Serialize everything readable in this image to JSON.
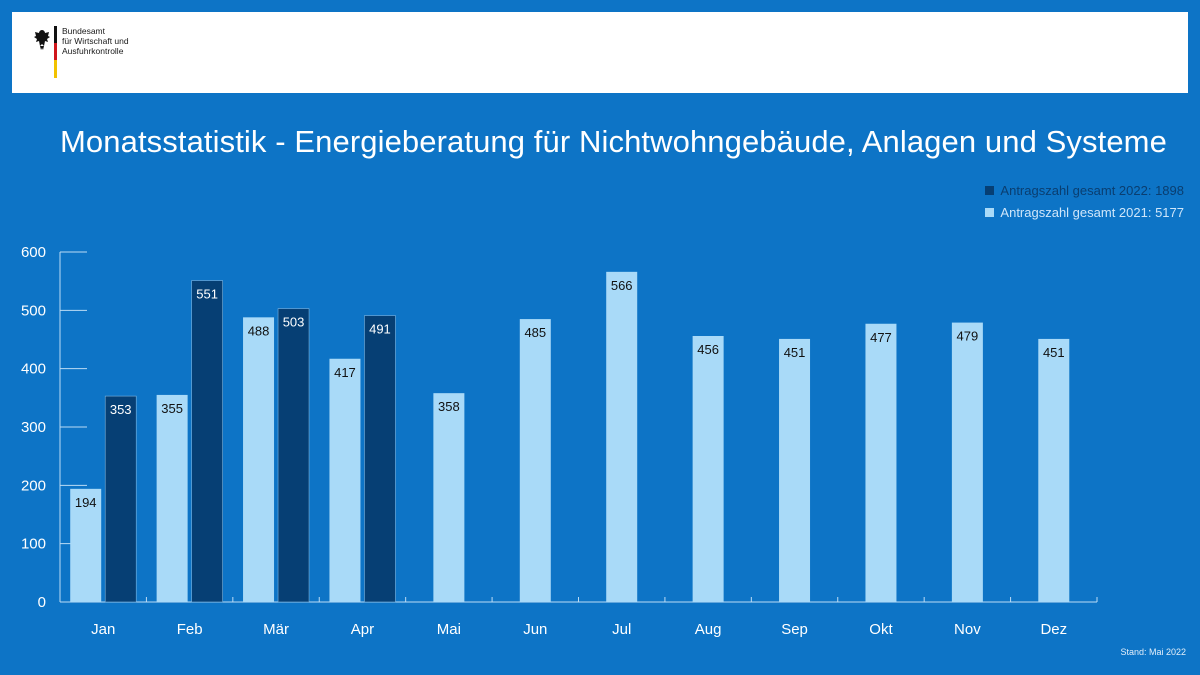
{
  "header": {
    "org_lines": [
      "Bundesamt",
      "für Wirtschaft und",
      "Ausfuhrkontrolle"
    ]
  },
  "chart_data": {
    "type": "bar",
    "title": "Monatsstatistik - Energieberatung für Nichtwohngebäude, Anlagen und Systeme",
    "categories": [
      "Jan",
      "Feb",
      "Mär",
      "Apr",
      "Mai",
      "Jun",
      "Jul",
      "Aug",
      "Sep",
      "Okt",
      "Nov",
      "Dez"
    ],
    "series": [
      {
        "name": "Antragszahl gesamt 2021: 5177",
        "color": "#a9daf8",
        "values": [
          194,
          355,
          488,
          417,
          358,
          485,
          566,
          456,
          451,
          477,
          479,
          451
        ]
      },
      {
        "name": "Antragszahl gesamt 2022: 1898",
        "color": "#063f74",
        "values": [
          353,
          551,
          503,
          491,
          null,
          null,
          null,
          null,
          null,
          null,
          null,
          null
        ]
      }
    ],
    "yticks": [
      "0",
      "100",
      "200",
      "300",
      "400",
      "500",
      "600"
    ],
    "ylim": [
      0,
      600
    ],
    "legend_position": "top-right",
    "grid": false
  },
  "footer": {
    "stand": "Stand: Mai 2022"
  }
}
